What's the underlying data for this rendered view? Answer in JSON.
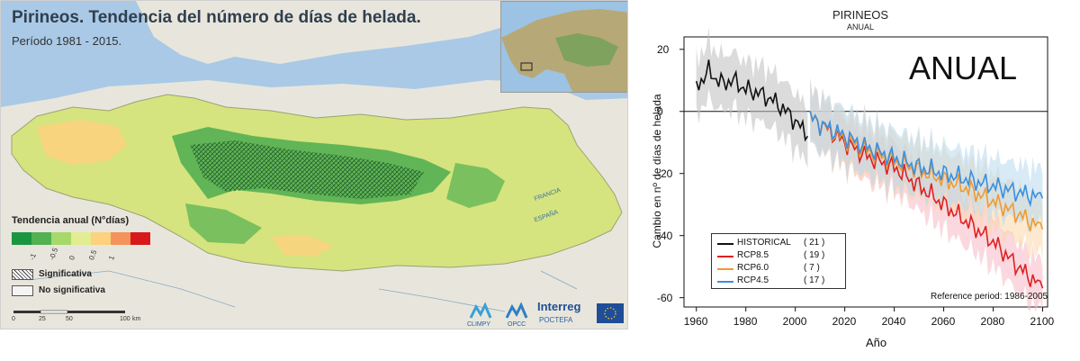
{
  "map": {
    "title": "Pirineos. Tendencia del número de días de helada.",
    "subtitle": "Período 1981 - 2015.",
    "legend": {
      "title": "Tendencia anual (N°días)",
      "colors": [
        "#1a9641",
        "#52b151",
        "#a6d96a",
        "#e3ec91",
        "#fdd17d",
        "#f4935a",
        "#d7191c"
      ],
      "ticks": [
        "-1",
        "-0.5",
        "0",
        "0.5",
        "1"
      ],
      "significant_label": "Significativa",
      "not_significant_label": "No significativa"
    },
    "scale_ticks": [
      "0",
      "25",
      "50",
      "100"
    ],
    "scale_unit": "km",
    "place_labels": [
      "FRANCIA",
      "ESPAÑA"
    ],
    "logos": [
      "CLIMPY",
      "OPCC",
      "Interreg",
      "POCTEFA"
    ],
    "colors": {
      "sea": "#a9c9e6",
      "land": "#e8e6dc",
      "region": "#d5e47e"
    }
  },
  "chart_data": {
    "type": "line",
    "title": "PIRINEOS",
    "subtitle": "ANUAL",
    "big_label": "ANUAL",
    "xlabel": "Año",
    "ylabel": "Cambio en nº de días de helada",
    "xlim": [
      1955,
      2102
    ],
    "ylim": [
      -63,
      24
    ],
    "xticks": [
      1960,
      1980,
      2000,
      2020,
      2040,
      2060,
      2080,
      2100
    ],
    "yticks": [
      20,
      0,
      -20,
      -40,
      -60
    ],
    "zero_line": true,
    "grid": false,
    "legend_position": "bottom-left",
    "reference_note": "Reference period: 1986-2005",
    "series": [
      {
        "name": "HISTORICAL",
        "count": "( 21 )",
        "color": "#111111",
        "band_color": "#bdbdbd",
        "x": [
          1960,
          1965,
          1970,
          1975,
          1980,
          1985,
          1990,
          1995,
          2000,
          2005
        ],
        "y": [
          8,
          13,
          9,
          10,
          7,
          6,
          4,
          1,
          -3,
          -8
        ],
        "band_halfwidth": 9
      },
      {
        "name": "RCP8.5",
        "count": "( 19 )",
        "color": "#e02020",
        "band_color": "#f7b8c4",
        "x": [
          2006,
          2010,
          2020,
          2030,
          2040,
          2050,
          2060,
          2070,
          2080,
          2090,
          2100
        ],
        "y": [
          -2,
          -4,
          -10,
          -15,
          -18,
          -24,
          -30,
          -36,
          -42,
          -50,
          -57
        ],
        "band_halfwidth": 8
      },
      {
        "name": "RCP6.0",
        "count": "( 7 )",
        "color": "#f09a30",
        "band_color": "#fbd7a8",
        "x": [
          2006,
          2010,
          2020,
          2030,
          2040,
          2050,
          2060,
          2070,
          2080,
          2090,
          2100
        ],
        "y": [
          -2,
          -4,
          -9,
          -13,
          -16,
          -19,
          -22,
          -25,
          -29,
          -33,
          -38
        ],
        "band_halfwidth": 9
      },
      {
        "name": "RCP4.5",
        "count": "( 17 )",
        "color": "#3a8fe0",
        "band_color": "#b6d8ef",
        "x": [
          2006,
          2010,
          2020,
          2030,
          2040,
          2050,
          2060,
          2070,
          2080,
          2090,
          2100
        ],
        "y": [
          -2,
          -4,
          -8,
          -12,
          -15,
          -18,
          -20,
          -22,
          -24,
          -26,
          -28
        ],
        "band_halfwidth": 9
      }
    ]
  }
}
